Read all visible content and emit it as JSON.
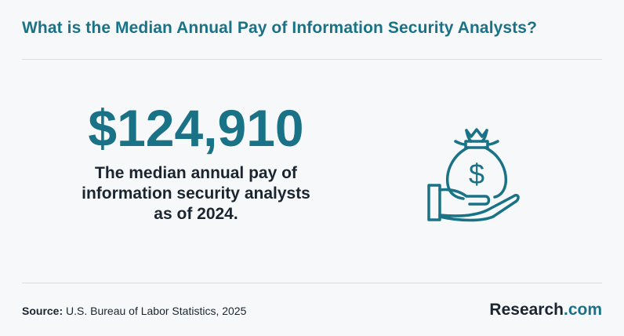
{
  "header": {
    "title": "What is the Median Annual Pay of Information Security Analysts?"
  },
  "stat": {
    "value": "$124,910",
    "description": "The median annual pay of\ninformation security analysts\nas of 2024."
  },
  "illustration": {
    "icon": "money-bag-hand-icon",
    "dollar_glyph": "$"
  },
  "footer": {
    "source_label": "Source:",
    "source_text": "U.S. Bureau of Labor Statistics, 2025",
    "brand_name": "Research",
    "brand_suffix": ".com"
  },
  "colors": {
    "accent": "#1a7286",
    "text": "#1b2530",
    "background": "#f7f8fa"
  }
}
